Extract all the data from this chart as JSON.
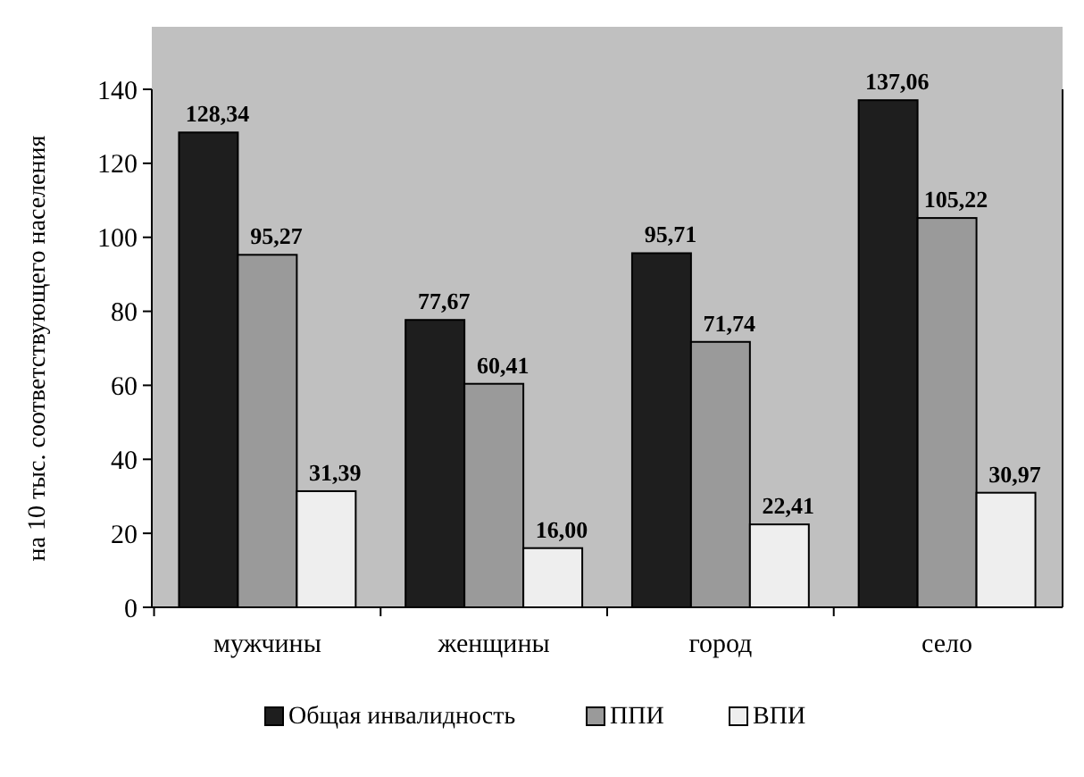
{
  "chart_data": {
    "type": "bar",
    "ylabel": "на 10 тыс. соответствующего населения",
    "categories": [
      "мужчины",
      "женщины",
      "город",
      "село"
    ],
    "series": [
      {
        "name": "Общая инвалидность",
        "color": "#1e1e1e",
        "values": [
          128.34,
          77.67,
          95.71,
          137.06
        ],
        "value_labels": [
          "128,34",
          "77,67",
          "95,71",
          "137,06"
        ]
      },
      {
        "name": "ППИ",
        "color": "#9a9a9a",
        "values": [
          95.27,
          60.41,
          71.74,
          105.22
        ],
        "value_labels": [
          "95,27",
          "60,41",
          "71,74",
          "105,22"
        ]
      },
      {
        "name": "ВПИ",
        "color": "#eeeeee",
        "values": [
          31.39,
          16.0,
          22.41,
          30.97
        ],
        "value_labels": [
          "31,39",
          "16,00",
          "22,41",
          "30,97"
        ]
      }
    ],
    "ylim": [
      0,
      140
    ],
    "yticks": [
      0,
      20,
      40,
      60,
      80,
      100,
      120,
      140
    ],
    "grid": false,
    "legend": "bottom"
  }
}
